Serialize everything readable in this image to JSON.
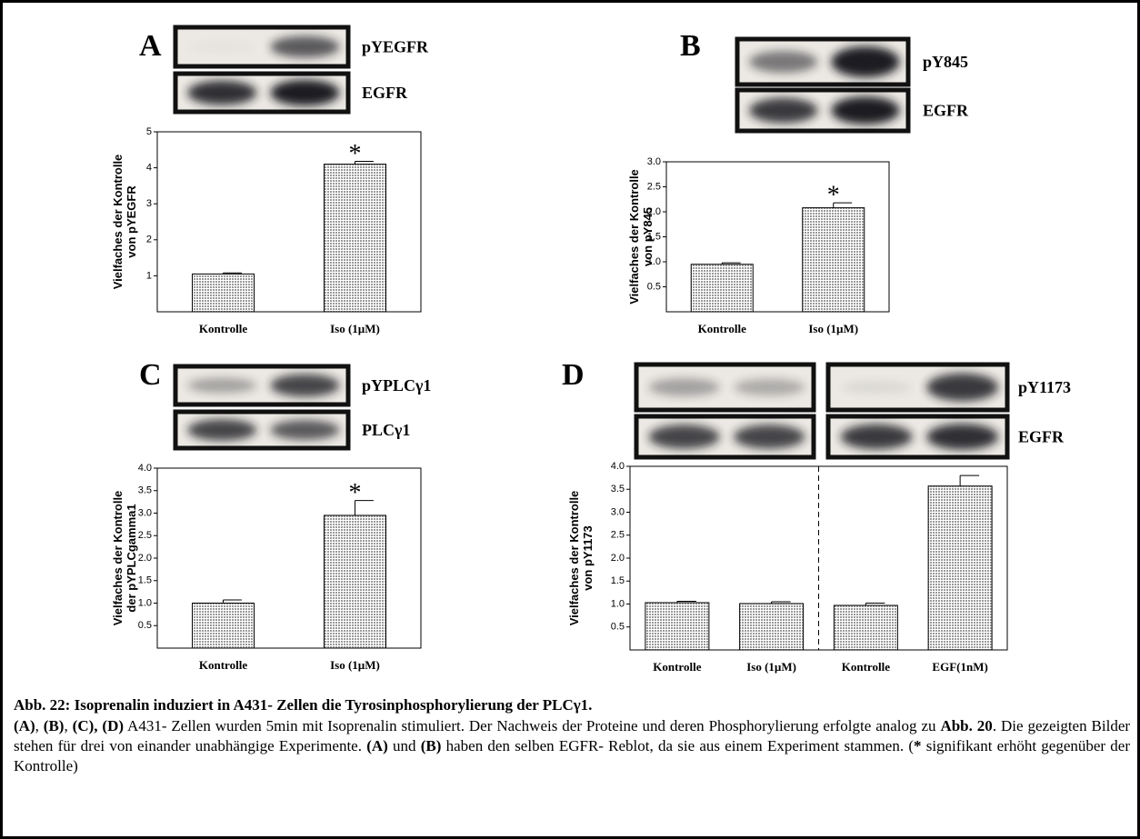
{
  "chart_data": [
    {
      "type": "bar",
      "panel": "A",
      "blot_labels": [
        "pYEGFR",
        "EGFR"
      ],
      "y_label": [
        "Vielfaches der Kontrolle",
        "von pYEGFR"
      ],
      "categories": [
        "Kontrolle",
        "Iso (1µM)"
      ],
      "series": [
        {
          "color": "#9a9a9a",
          "values": [
            1.05,
            4.1
          ],
          "errors": [
            0.03,
            0.08
          ]
        }
      ],
      "annotations": [
        {
          "text": "*",
          "category": "Iso (1µM)"
        }
      ],
      "ylim": [
        0,
        5
      ],
      "yticks": [
        1,
        2,
        3,
        4,
        5
      ]
    },
    {
      "type": "bar",
      "panel": "B",
      "blot_labels": [
        "pY845",
        "EGFR"
      ],
      "y_label": [
        "Vielfaches der Kontrolle",
        "von pY845"
      ],
      "categories": [
        "Kontrolle",
        "Iso (1µM)"
      ],
      "series": [
        {
          "color": "#9a9a9a",
          "values": [
            0.95,
            2.08
          ],
          "errors": [
            0.03,
            0.1
          ]
        }
      ],
      "annotations": [
        {
          "text": "*",
          "category": "Iso (1µM)"
        }
      ],
      "ylim": [
        0,
        3
      ],
      "yticks": [
        0.5,
        {
          "value": 1,
          "label": "1.0"
        },
        1.5,
        {
          "value": 2,
          "label": "2.0"
        },
        2.5,
        {
          "value": 3,
          "label": "3.0"
        }
      ]
    },
    {
      "type": "bar",
      "panel": "C",
      "blot_labels": [
        "pYPLCγ1",
        "PLCγ1"
      ],
      "y_label": [
        "Vielfaches der Kontrolle",
        "der pYPLCgamma1"
      ],
      "categories": [
        "Kontrolle",
        "Iso (1µM)"
      ],
      "series": [
        {
          "color": "#9a9a9a",
          "values": [
            1.0,
            2.95
          ],
          "errors": [
            0.07,
            0.33
          ]
        }
      ],
      "annotations": [
        {
          "text": "*",
          "category": "Iso (1µM)"
        }
      ],
      "ylim": [
        0,
        4
      ],
      "yticks": [
        0.5,
        {
          "value": 1,
          "label": "1.0"
        },
        1.5,
        {
          "value": 2,
          "label": "2.0"
        },
        2.5,
        {
          "value": 3,
          "label": "3.0"
        },
        3.5,
        {
          "value": 4,
          "label": "4.0"
        }
      ]
    },
    {
      "type": "bar",
      "panel": "D",
      "blot_labels": [
        "pY1173",
        "EGFR"
      ],
      "y_label": [
        "Vielfaches der Kontrolle",
        "von pY1173"
      ],
      "categories": [
        "Kontrolle",
        "Iso (1µM)",
        "Kontrolle",
        "EGF(1nM)"
      ],
      "series": [
        {
          "color": "#9a9a9a",
          "values": [
            1.03,
            1.01,
            0.97,
            3.57
          ],
          "errors": [
            0.03,
            0.04,
            0.05,
            0.23
          ]
        }
      ],
      "ylim": [
        0,
        4
      ],
      "yticks": [
        0.5,
        {
          "value": 1,
          "label": "1.0"
        },
        1.5,
        {
          "value": 2,
          "label": "2.0"
        },
        2.5,
        {
          "value": 3,
          "label": "3.0"
        },
        3.5,
        {
          "value": 4,
          "label": "4.0"
        }
      ]
    }
  ],
  "caption": {
    "title": "Abb. 22: Isoprenalin induziert in A431- Zellen die Tyrosinphosphorylierung der PLCγ1.",
    "body": [
      "(A)",
      ", ",
      "(B)",
      ", ",
      "(C), (D)",
      " A431- Zellen wurden 5min mit Isoprenalin stimuliert. Der Nachweis der Proteine und deren Phosphorylierung erfolgte analog zu ",
      "Abb. 20",
      ". Die gezeigten Bilder stehen für drei von einander unabhängige Experimente. ",
      "(A)",
      " und ",
      "(B)",
      " haben den selben EGFR- Reblot, da sie aus einem Experiment stammen. (",
      "*",
      " signifikant erhöht gegenüber der Kontrolle)"
    ]
  }
}
